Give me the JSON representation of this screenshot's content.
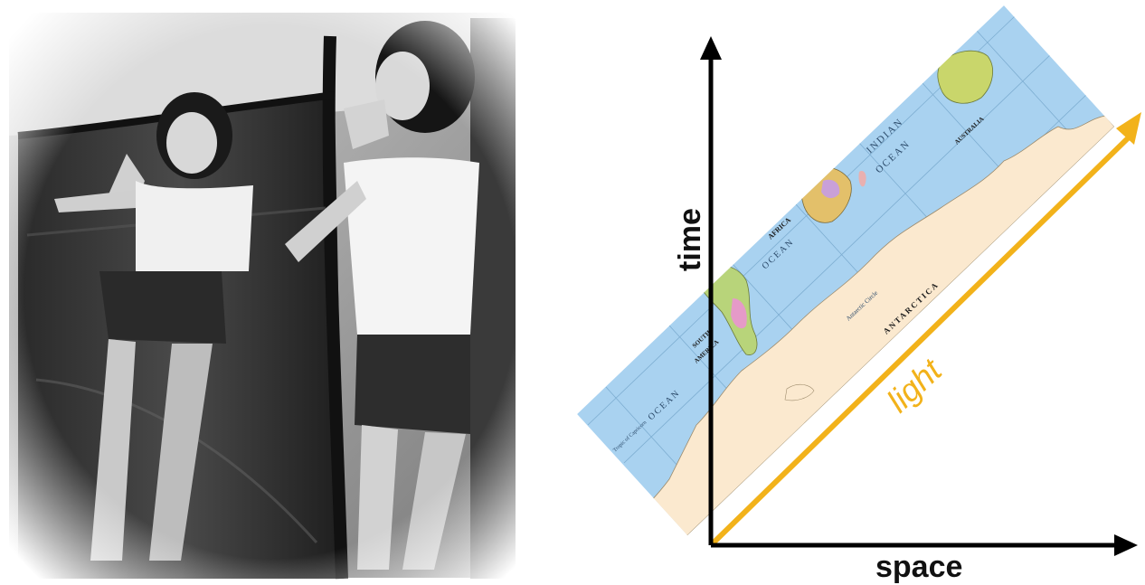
{
  "diagram": {
    "x_axis_label": "space",
    "y_axis_label": "time",
    "light_label": "light",
    "map_labels": {
      "indian_ocean_1": "INDIAN",
      "indian_ocean_2": "OCEAN",
      "australia": "AUSTRALIA",
      "africa": "AFRICA",
      "atlantic": "OCEAN",
      "south_america_1": "SOUTH",
      "south_america_2": "AMERICA",
      "antarctica": "ANTARCTICA",
      "antarctic_circle": "Antarctic Circle",
      "pacific": "OCEAN",
      "tropic": "Tropic of Capricorn"
    }
  },
  "colors": {
    "ocean": "#a9d2f0",
    "ice": "#fbe9cf",
    "light_line": "#f2b21a",
    "axis": "#000000"
  }
}
